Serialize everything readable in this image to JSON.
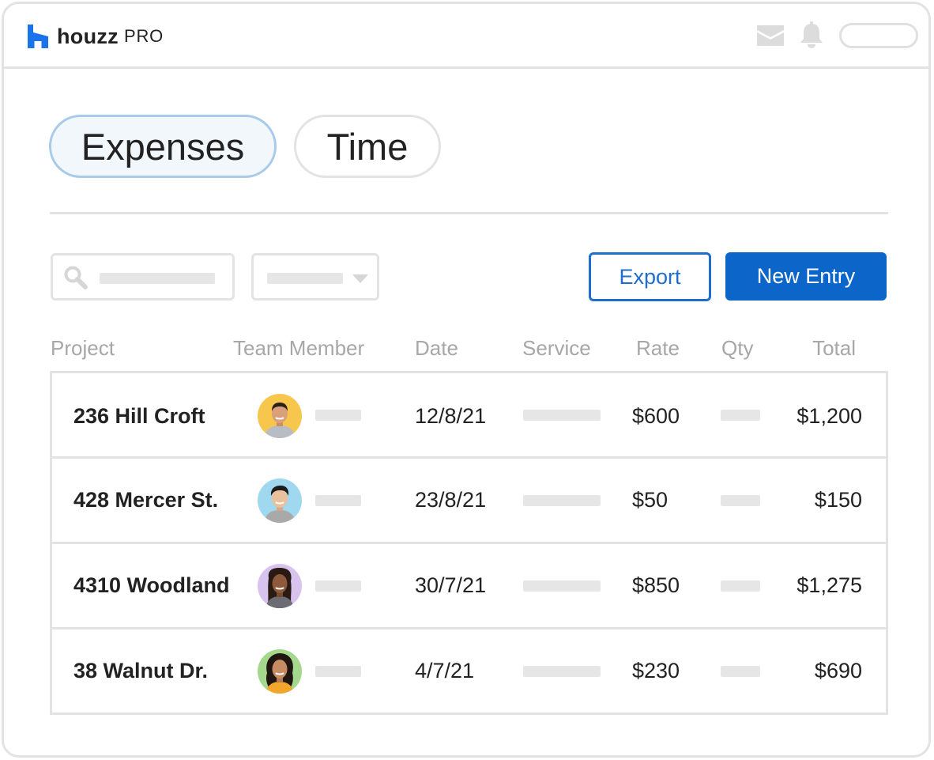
{
  "app": {
    "logo_word": "houzz",
    "logo_suffix": "PRO"
  },
  "header_icons": [
    "mail-icon",
    "bell-icon",
    "profile-pill"
  ],
  "tabs": [
    {
      "label": "Expenses",
      "active": true
    },
    {
      "label": "Time",
      "active": false
    }
  ],
  "toolbar": {
    "export_label": "Export",
    "new_entry_label": "New Entry"
  },
  "table": {
    "headers": {
      "project": "Project",
      "team_member": "Team Member",
      "date": "Date",
      "service": "Service",
      "rate": "Rate",
      "qty": "Qty",
      "total": "Total"
    },
    "rows": [
      {
        "project": "236 Hill Croft",
        "date": "12/8/21",
        "rate": "$600",
        "total": "$1,200",
        "avatar_bg": "#f7c64c"
      },
      {
        "project": "428 Mercer St.",
        "date": "23/8/21",
        "rate": "$50",
        "total": "$150",
        "avatar_bg": "#9fd8ef"
      },
      {
        "project": "4310 Woodland",
        "date": "30/7/21",
        "rate": "$850",
        "total": "$1,275",
        "avatar_bg": "#d8c3ef"
      },
      {
        "project": "38 Walnut Dr.",
        "date": "4/7/21",
        "rate": "$230",
        "total": "$690",
        "avatar_bg": "#a4d88c"
      }
    ]
  },
  "colors": {
    "brand_blue": "#0c66ca",
    "tab_active_border": "#a9cbea",
    "border": "#e3e3e3",
    "header_text": "#a7a7a7"
  }
}
